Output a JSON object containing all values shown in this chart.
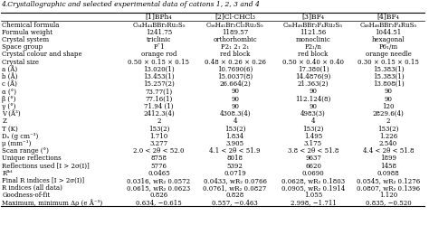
{
  "title": "4.Crystallographic and selected experimental data of cations 1, 2, 3 and 4",
  "columns": [
    "",
    "[1]BPh₄",
    "[2]Cl·CHCl₃",
    "[3]BF₄",
    "[4]BF₄"
  ],
  "rows": [
    [
      "Chemical formula",
      "C₅₄H₄₄BBr₂Ru₂S₅",
      "C₅₆H₄₁Br₂Cl₂Ru₂S₅",
      "C₃₆H₄₆BBr₂F₄Ru₂S₅",
      "C₄₆H₄₆BBr₂F₄RuS₅"
    ],
    [
      "Formula weight",
      "1241.75",
      "1189.57",
      "1121.56",
      "1044.51"
    ],
    [
      "Crystal system",
      "triclinic",
      "orthorhombic",
      "monoclinic",
      "hexagonal"
    ],
    [
      "Space group",
      "P¯1",
      "P2₁ 2₁ 2₁",
      "P2₁/n",
      "P6₁/m"
    ],
    [
      "Crystal colour and shape",
      "orange rod",
      "red block",
      "red block",
      "orange needle"
    ],
    [
      "Crystal size",
      "0.50 × 0.15 × 0.15",
      "0.48 × 0.26 × 0.26",
      "0.50 × 0.40 × 0.40",
      "0.30 × 0.15 × 0.15"
    ],
    [
      "a (Å)",
      "13.020(1)",
      "10.7690(6)",
      "17.380(1)",
      "15.383(1)"
    ],
    [
      "b (Å)",
      "13.453(1)",
      "15.0037(8)",
      "14.4876(9)",
      "15.383(1)"
    ],
    [
      "c (Å)",
      "15.257(2)",
      "26.664(2)",
      "21.363(2)",
      "13.808(1)"
    ],
    [
      "α (°)",
      "73.77(1)",
      "90",
      "90",
      "90"
    ],
    [
      "β (°)",
      "77.16(1)",
      "90",
      "112.124(8)",
      "90"
    ],
    [
      "γ (°)",
      "71.94 (1)",
      "90",
      "90",
      "120"
    ],
    [
      "V (Å³)",
      "2412.3(4)",
      "4308.3(4)",
      "4983(3)",
      "2829.6(4)"
    ],
    [
      "Z",
      "2",
      "4",
      "4",
      "2"
    ],
    [
      "T (K)",
      "153(2)",
      "153(2)",
      "153(2)",
      "153(2)"
    ],
    [
      "Dₓ (g cm⁻³)",
      "1.710",
      "1.834",
      "1.495",
      "1.226"
    ],
    [
      "μ (mm⁻¹)",
      "3.277",
      "3.905",
      "3.175",
      "2.540"
    ],
    [
      "Scan range (°)",
      "2.0 < 2θ < 52.0",
      "4.1 < 2θ < 51.9",
      "3.8 < 2θ < 51.8",
      "4.4 < 2θ < 51.8"
    ],
    [
      "Unique reflections",
      "8758",
      "8018",
      "9637",
      "1899"
    ],
    [
      "Reflections used [I > 2σ(I)]",
      "5776",
      "5392",
      "6620",
      "1458"
    ],
    [
      "Rᴵᵏᵗ",
      "0.0465",
      "0.0719",
      "0.0690",
      "0.0988"
    ],
    [
      "Final R indices [I > 2σ(I)]",
      "0.0316, wR₂ 0.0572",
      "0.0433, wR₂ 0.0766",
      "0.0628, wR₂ 0.1803",
      "0.0545, wR₂ 0.1276"
    ],
    [
      "R indices (all data)",
      "0.0615, wR₂ 0.0623",
      "0.0761, wR₂ 0.0827",
      "0.0905, wR₂ 0.1914",
      "0.0807, wR₂ 0.1396"
    ],
    [
      "Goodness-of-fit",
      "0.826",
      "0.828",
      "1.055",
      "1.120"
    ],
    [
      "Maximum, minimum Δρ (e Å⁻³)",
      "0.634, −0.615",
      "0.557, −0.463",
      "2.998, −1.711",
      "0.835, −0.520"
    ]
  ],
  "bg_color": "#ffffff",
  "header_line_color": "#000000",
  "text_color": "#000000",
  "title_fontsize": 5.5,
  "header_fontsize": 5.5,
  "cell_fontsize": 5.0
}
